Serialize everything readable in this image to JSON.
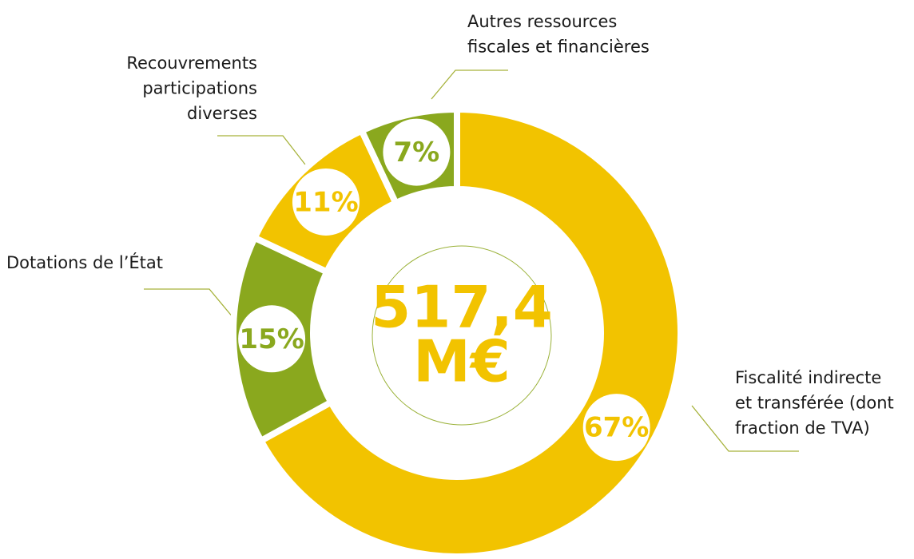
{
  "chart_data": {
    "type": "donut",
    "categories": [
      [
        "Fiscalité indirecte",
        "et transférée (dont",
        "fraction de TVA)"
      ],
      [
        "Dotations de l’État"
      ],
      [
        "Recouvrements",
        "participations",
        "diverses"
      ],
      [
        "Autres ressources",
        "fiscales et financières"
      ]
    ],
    "values": [
      67,
      15,
      11,
      7
    ],
    "value_labels": [
      "67%",
      "15%",
      "11%",
      "7%"
    ],
    "colors": [
      "#f2c300",
      "#8aa81e",
      "#f2c300",
      "#8aa81e"
    ],
    "center_lines": [
      "517,4",
      "M€"
    ]
  }
}
